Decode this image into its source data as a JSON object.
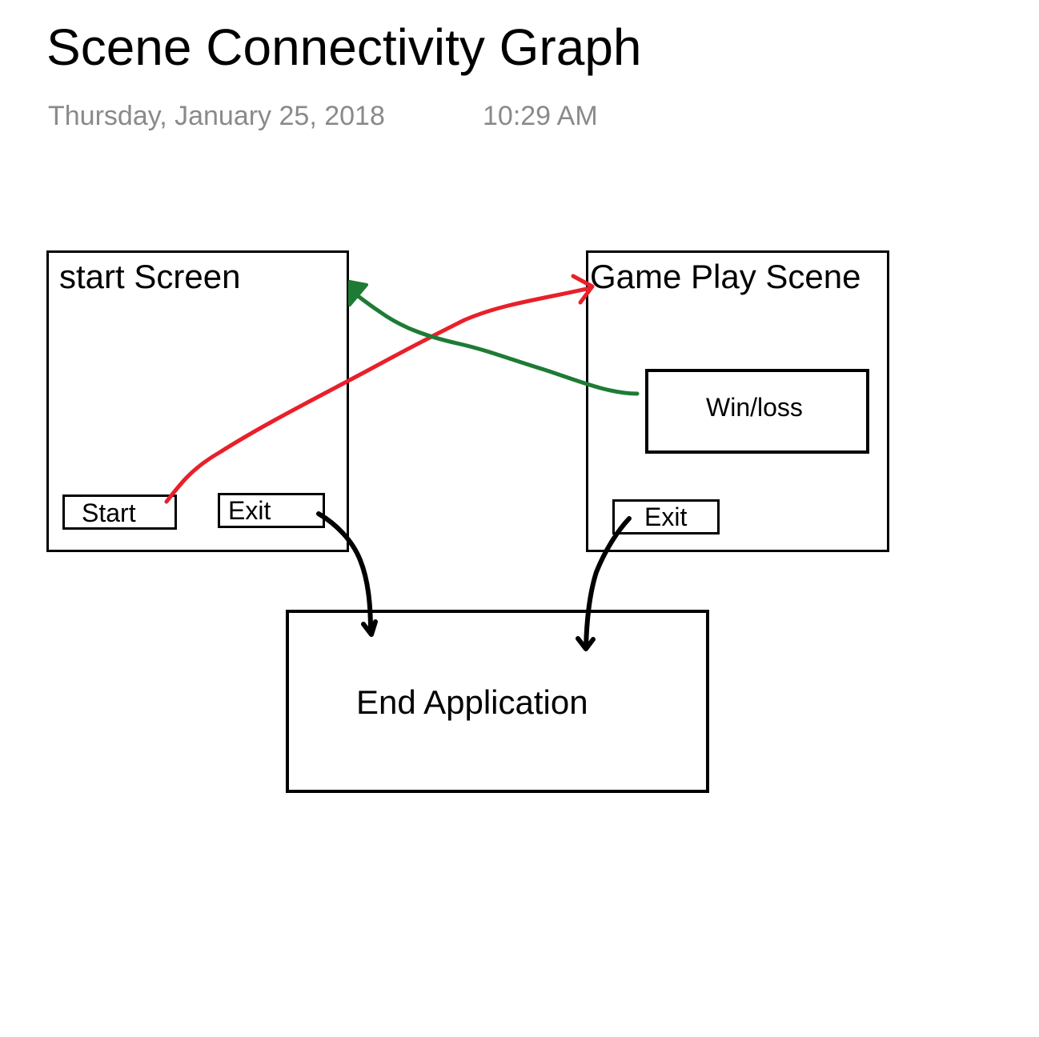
{
  "header": {
    "title": "Scene Connectivity Graph",
    "date": "Thursday, January 25, 2018",
    "time": "10:29 AM"
  },
  "diagram": {
    "nodes": {
      "start_screen": {
        "label": "start Screen"
      },
      "start_button": {
        "label": "Start"
      },
      "start_exit_button": {
        "label": "Exit"
      },
      "game_play_scene": {
        "label": "Game Play Scene"
      },
      "win_loss": {
        "label": "Win/loss"
      },
      "game_exit_button": {
        "label": "Exit"
      },
      "end_application": {
        "label": "End Application"
      }
    },
    "edges": [
      {
        "from": "start_button",
        "to": "game_play_scene",
        "color": "#e8202a"
      },
      {
        "from": "win_loss",
        "to": "start_screen",
        "color": "#1e7b34"
      },
      {
        "from": "start_exit_button",
        "to": "end_application",
        "color": "#000000"
      },
      {
        "from": "game_exit_button",
        "to": "end_application",
        "color": "#000000"
      }
    ]
  }
}
